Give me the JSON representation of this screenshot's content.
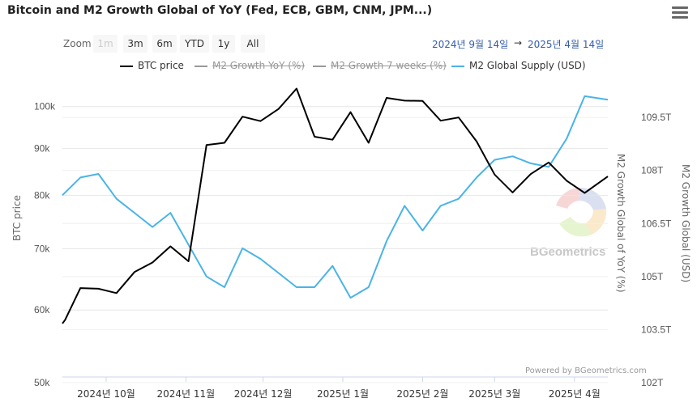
{
  "title": "Bitcoin and M2 Growth Global of YoY (Fed, ECB, GBM, CNM, JPM...)",
  "menu_icon": "hamburger-menu-icon",
  "zoom": {
    "label": "Zoom",
    "buttons": [
      "1m",
      "3m",
      "6m",
      "YTD",
      "1y",
      "All"
    ],
    "disabled": "1m"
  },
  "range": {
    "from": "2024년 9월 14일",
    "arrow": "→",
    "to": "2025년 4월 14일"
  },
  "legend": [
    {
      "name": "BTC price",
      "color": "#000000",
      "hidden": false
    },
    {
      "name": "M2 Growth YoY (%)",
      "color": "#666666",
      "hidden": true
    },
    {
      "name": "M2 Growth 7 weeks (%)",
      "color": "#666666",
      "hidden": true
    },
    {
      "name": "M2 Global Supply (USD)",
      "color": "#4ab4e6",
      "hidden": false
    }
  ],
  "watermark": "BGeometrics",
  "credit": "Powered by BGeometrics.com",
  "chart_data": {
    "type": "line",
    "x_tick_labels": [
      "2024년 10월",
      "2024년 11월",
      "2024년 12월",
      "2025년 1월",
      "2025년 2월",
      "2025년 3월",
      "2025년 4월"
    ],
    "x_range": [
      "2024-09-14",
      "2025-04-14"
    ],
    "left_axis": {
      "title": "BTC price",
      "ticks": [
        "50k",
        "60k",
        "70k",
        "80k",
        "90k",
        "100k"
      ]
    },
    "right_axis_m2_growth": {
      "title": "M2 Growth Global of YoY (%)"
    },
    "right_axis_supply": {
      "title": "M2 Growth Global (USD)",
      "ticks": [
        "102T",
        "103.5T",
        "105T",
        "106.5T",
        "108T",
        "109.5T"
      ]
    },
    "series": [
      {
        "name": "BTC price",
        "color": "#000000",
        "x": [
          "2024-09-14",
          "2024-09-15",
          "2024-09-21",
          "2024-09-28",
          "2024-10-05",
          "2024-10-12",
          "2024-10-19",
          "2024-10-26",
          "2024-11-02",
          "2024-11-09",
          "2024-11-16",
          "2024-11-23",
          "2024-11-30",
          "2024-12-07",
          "2024-12-14",
          "2024-12-21",
          "2024-12-28",
          "2025-01-04",
          "2025-01-11",
          "2025-01-18",
          "2025-01-25",
          "2025-02-01",
          "2025-02-08",
          "2025-02-15",
          "2025-02-22",
          "2025-03-01",
          "2025-03-08",
          "2025-03-15",
          "2025-03-22",
          "2025-03-29",
          "2025-04-05",
          "2025-04-14"
        ],
        "values": [
          58000,
          58500,
          63400,
          63300,
          62600,
          66000,
          67600,
          70400,
          67800,
          90800,
          91300,
          97500,
          96400,
          99400,
          104600,
          92700,
          92000,
          98600,
          91300,
          102200,
          101500,
          101400,
          96500,
          97300,
          91600,
          84300,
          80600,
          84400,
          86900,
          83000,
          80500,
          83900
        ]
      },
      {
        "name": "M2 Global Supply (USD)",
        "color": "#4ab4e6",
        "x": [
          "2024-09-14",
          "2024-09-21",
          "2024-09-28",
          "2024-10-05",
          "2024-10-12",
          "2024-10-19",
          "2024-10-26",
          "2024-11-02",
          "2024-11-09",
          "2024-11-16",
          "2024-11-23",
          "2024-11-30",
          "2024-12-07",
          "2024-12-14",
          "2024-12-21",
          "2024-12-28",
          "2025-01-04",
          "2025-01-11",
          "2025-01-18",
          "2025-01-25",
          "2025-02-01",
          "2025-02-08",
          "2025-02-15",
          "2025-02-22",
          "2025-03-01",
          "2025-03-08",
          "2025-03-15",
          "2025-03-22",
          "2025-03-29",
          "2025-04-05",
          "2025-04-14"
        ],
        "values": [
          107.3,
          107.8,
          107.9,
          107.2,
          106.8,
          106.4,
          106.8,
          105.9,
          105.0,
          104.7,
          105.8,
          105.5,
          105.1,
          104.7,
          104.7,
          105.3,
          104.4,
          104.7,
          106.0,
          107.0,
          106.3,
          107.0,
          107.2,
          107.8,
          108.3,
          108.4,
          108.2,
          108.1,
          108.9,
          110.1,
          110.0
        ]
      }
    ]
  }
}
